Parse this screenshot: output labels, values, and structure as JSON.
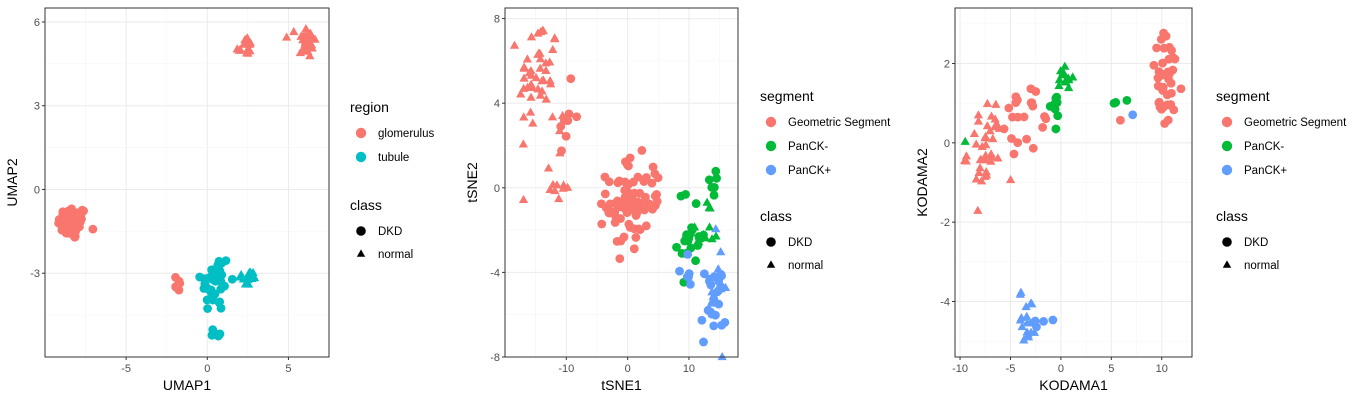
{
  "chart_data": [
    {
      "type": "scatter",
      "xlabel": "UMAP1",
      "ylabel": "UMAP2",
      "xlim": [
        -10,
        7.5
      ],
      "ylim": [
        -6,
        6.5
      ],
      "x_ticks": [
        -5,
        0,
        5
      ],
      "y_ticks": [
        -3,
        0,
        3,
        6
      ],
      "grid": true,
      "color_legend": {
        "title": "region",
        "entries": [
          {
            "label": "glomerulus",
            "color": "#F8766D"
          },
          {
            "label": "tubule",
            "color": "#00BFC4"
          }
        ]
      },
      "shape_legend": {
        "title": "class",
        "entries": [
          {
            "label": "DKD",
            "shape": "circle"
          },
          {
            "label": "normal",
            "shape": "triangle"
          }
        ]
      },
      "clusters": [
        {
          "group": "glomerulus",
          "class": "DKD",
          "x": -8.3,
          "y": -1.2,
          "sx": 0.45,
          "sy": 0.3,
          "n": 60
        },
        {
          "group": "glomerulus",
          "class": "DKD",
          "x": -1.8,
          "y": -3.35,
          "sx": 0.2,
          "sy": 0.15,
          "n": 7
        },
        {
          "group": "glomerulus",
          "class": "normal",
          "x": 2.3,
          "y": 5.1,
          "sx": 0.25,
          "sy": 0.2,
          "n": 14
        },
        {
          "group": "glomerulus",
          "class": "normal",
          "x": 6.1,
          "y": 5.3,
          "sx": 0.3,
          "sy": 0.3,
          "n": 32
        },
        {
          "group": "tubule",
          "class": "DKD",
          "x": 0.5,
          "y": -3.3,
          "sx": 0.45,
          "sy": 0.55,
          "n": 40
        },
        {
          "group": "tubule",
          "class": "DKD",
          "x": 0.5,
          "y": -5.15,
          "sx": 0.2,
          "sy": 0.15,
          "n": 7
        },
        {
          "group": "tubule",
          "class": "normal",
          "x": 2.5,
          "y": -3.2,
          "sx": 0.3,
          "sy": 0.15,
          "n": 12
        }
      ]
    },
    {
      "type": "scatter",
      "xlabel": "tSNE1",
      "ylabel": "tSNE2",
      "xlim": [
        -20,
        18
      ],
      "ylim": [
        -8,
        8.5
      ],
      "x_ticks": [
        -10,
        0,
        10
      ],
      "y_ticks": [
        -8,
        -4,
        0,
        4,
        8
      ],
      "grid": true,
      "color_legend": {
        "title": "segment",
        "entries": [
          {
            "label": "Geometric Segment",
            "color": "#F8766D"
          },
          {
            "label": "PanCK-",
            "color": "#00BA38"
          },
          {
            "label": "PanCK+",
            "color": "#619CFF"
          }
        ]
      },
      "shape_legend": {
        "title": "class",
        "entries": [
          {
            "label": "DKD",
            "shape": "circle"
          },
          {
            "label": "normal",
            "shape": "triangle"
          }
        ]
      },
      "clusters": [
        {
          "group": "Geometric Segment",
          "class": "normal",
          "x": -14.5,
          "y": 5.3,
          "sx": 1.6,
          "sy": 1.4,
          "n": 45
        },
        {
          "group": "Geometric Segment",
          "class": "normal",
          "x": -11.5,
          "y": 0.5,
          "sx": 1.0,
          "sy": 1.2,
          "n": 12
        },
        {
          "group": "Geometric Segment",
          "class": "DKD",
          "x": -10.0,
          "y": 3.3,
          "sx": 1.2,
          "sy": 0.8,
          "n": 8
        },
        {
          "group": "Geometric Segment",
          "class": "DKD",
          "x": 0.0,
          "y": -0.8,
          "sx": 1.7,
          "sy": 1.1,
          "n": 70
        },
        {
          "group": "Geometric Segment",
          "class": "DKD",
          "x": 4.5,
          "y": 0.1,
          "sx": 0.4,
          "sy": 0.6,
          "n": 8
        },
        {
          "group": "PanCK-",
          "class": "DKD",
          "x": 10.5,
          "y": -2.3,
          "sx": 1.2,
          "sy": 1.1,
          "n": 22
        },
        {
          "group": "PanCK-",
          "class": "normal",
          "x": 13.5,
          "y": -1.4,
          "sx": 0.6,
          "sy": 0.7,
          "n": 8
        },
        {
          "group": "PanCK-",
          "class": "DKD",
          "x": 13.8,
          "y": 0.2,
          "sx": 0.3,
          "sy": 0.3,
          "n": 6
        },
        {
          "group": "PanCK-",
          "class": "normal",
          "x": 11.0,
          "y": -2.2,
          "sx": 0.4,
          "sy": 0.3,
          "n": 3
        },
        {
          "group": "PanCK+",
          "class": "DKD",
          "x": 14.0,
          "y": -5.5,
          "sx": 1.0,
          "sy": 1.0,
          "n": 22
        },
        {
          "group": "PanCK+",
          "class": "normal",
          "x": 14.5,
          "y": -5.0,
          "sx": 1.0,
          "sy": 1.2,
          "n": 12
        },
        {
          "group": "PanCK+",
          "class": "DKD",
          "x": 9.5,
          "y": -3.8,
          "sx": 0.6,
          "sy": 0.5,
          "n": 6
        }
      ]
    },
    {
      "type": "scatter",
      "xlabel": "KODAMA1",
      "ylabel": "KODAMA2",
      "xlim": [
        -10.5,
        13
      ],
      "ylim": [
        -5.4,
        3.4
      ],
      "x_ticks": [
        -10,
        -5,
        0,
        5,
        10
      ],
      "y_ticks": [
        -4,
        -2,
        0,
        2
      ],
      "grid": true,
      "color_legend": {
        "title": "segment",
        "entries": [
          {
            "label": "Geometric Segment",
            "color": "#F8766D"
          },
          {
            "label": "PanCK-",
            "color": "#00BA38"
          },
          {
            "label": "PanCK+",
            "color": "#619CFF"
          }
        ]
      },
      "shape_legend": {
        "title": "class",
        "entries": [
          {
            "label": "DKD",
            "shape": "circle"
          },
          {
            "label": "normal",
            "shape": "triangle"
          }
        ]
      },
      "clusters": [
        {
          "group": "Geometric Segment",
          "class": "normal",
          "x": -7.5,
          "y": -0.2,
          "sx": 0.9,
          "sy": 0.65,
          "n": 38
        },
        {
          "group": "Geometric Segment",
          "class": "DKD",
          "x": -4.0,
          "y": 0.6,
          "sx": 0.7,
          "sy": 0.35,
          "n": 18
        },
        {
          "group": "Geometric Segment",
          "class": "DKD",
          "x": -1.5,
          "y": 0.55,
          "sx": 0.3,
          "sy": 0.1,
          "n": 3
        },
        {
          "group": "Geometric Segment",
          "class": "DKD",
          "x": 10.5,
          "y": 1.5,
          "sx": 0.8,
          "sy": 0.6,
          "n": 42
        },
        {
          "group": "Geometric Segment",
          "class": "DKD",
          "x": 6.0,
          "y": 0.5,
          "sx": 0.1,
          "sy": 0.05,
          "n": 1
        },
        {
          "group": "PanCK-",
          "class": "normal",
          "x": 0.4,
          "y": 1.6,
          "sx": 0.4,
          "sy": 0.25,
          "n": 14
        },
        {
          "group": "PanCK-",
          "class": "DKD",
          "x": -0.5,
          "y": 0.9,
          "sx": 0.45,
          "sy": 0.2,
          "n": 8
        },
        {
          "group": "PanCK-",
          "class": "normal",
          "x": -9.5,
          "y": 0.05,
          "sx": 0.1,
          "sy": 0.05,
          "n": 1
        },
        {
          "group": "PanCK-",
          "class": "DKD",
          "x": 6.3,
          "y": 1.1,
          "sx": 0.5,
          "sy": 0.1,
          "n": 3
        },
        {
          "group": "PanCK+",
          "class": "normal",
          "x": -3.3,
          "y": -4.4,
          "sx": 0.4,
          "sy": 0.35,
          "n": 18
        },
        {
          "group": "PanCK+",
          "class": "DKD",
          "x": -2.0,
          "y": -4.6,
          "sx": 0.4,
          "sy": 0.1,
          "n": 4
        },
        {
          "group": "PanCK+",
          "class": "DKD",
          "x": 7.1,
          "y": 0.8,
          "sx": 0.05,
          "sy": 0.05,
          "n": 1
        }
      ]
    }
  ]
}
